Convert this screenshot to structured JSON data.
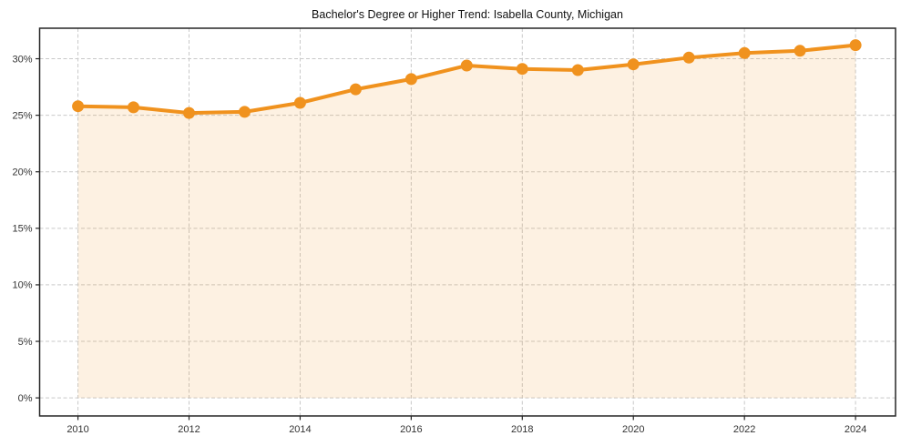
{
  "chart_data": {
    "type": "line",
    "title": "Bachelor's Degree or Higher Trend: Isabella County, Michigan",
    "xlabel": "",
    "ylabel": "",
    "x": [
      2010,
      2011,
      2012,
      2013,
      2014,
      2015,
      2016,
      2017,
      2018,
      2019,
      2020,
      2021,
      2022,
      2023,
      2024
    ],
    "values": [
      25.8,
      25.7,
      25.2,
      25.3,
      26.1,
      27.3,
      28.2,
      29.4,
      29.1,
      29.0,
      29.5,
      30.1,
      30.5,
      30.7,
      31.2
    ],
    "x_ticks": [
      2010,
      2012,
      2014,
      2016,
      2018,
      2020,
      2022,
      2024
    ],
    "x_tick_labels": [
      "2010",
      "2012",
      "2014",
      "2016",
      "2018",
      "2020",
      "2022",
      "2024"
    ],
    "y_ticks": [
      0,
      5,
      10,
      15,
      20,
      25,
      30
    ],
    "y_tick_labels": [
      "0%",
      "5%",
      "10%",
      "15%",
      "20%",
      "25%",
      "30%"
    ],
    "xlim": [
      2009.31,
      2024.72
    ],
    "ylim": [
      -1.6,
      32.7
    ],
    "grid": true,
    "grid_style": "dashed",
    "legend": "none",
    "marker": "circle",
    "area_fill_to_zero": true,
    "colors": {
      "line": "#f0921e",
      "marker": "#f0921e",
      "fill": "rgba(243,146,30,0.13)",
      "grid": "#c9c9c9",
      "axis": "#262626",
      "tick_label": "#333333",
      "title": "#111111",
      "background": "#ffffff"
    }
  }
}
